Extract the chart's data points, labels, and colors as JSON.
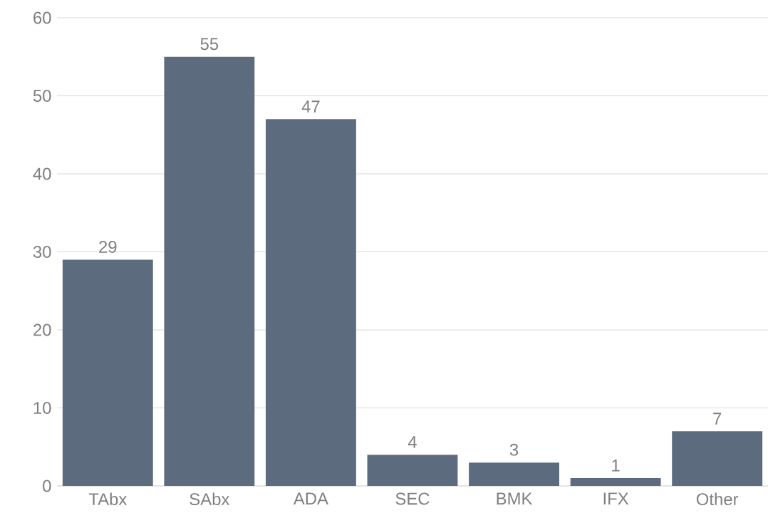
{
  "chart_data": {
    "type": "bar",
    "categories": [
      "TAbx",
      "SAbx",
      "ADA",
      "SEC",
      "BMK",
      "IFX",
      "Other"
    ],
    "values": [
      29,
      55,
      47,
      4,
      3,
      1,
      7
    ],
    "color": "#5d6b7e",
    "ylim": [
      0,
      60
    ],
    "yticks": [
      0,
      10,
      20,
      30,
      40,
      50,
      60
    ],
    "grid": "y",
    "data_labels": true
  }
}
